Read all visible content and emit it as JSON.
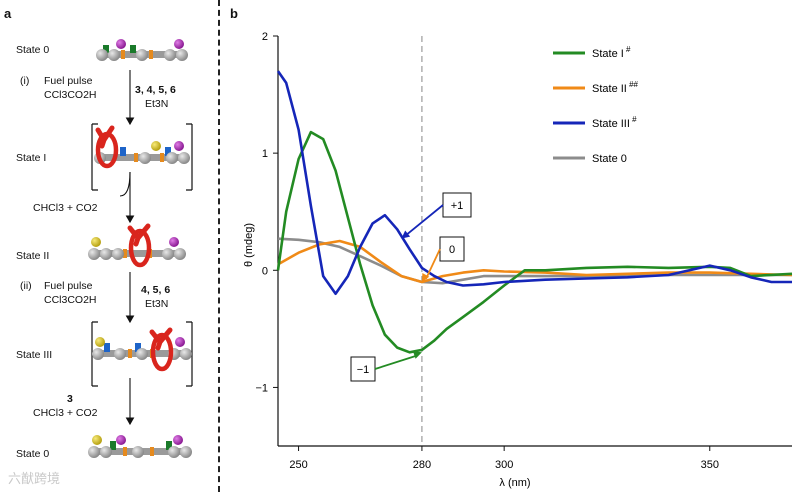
{
  "panel_a": {
    "label": "a",
    "states": [
      "State 0",
      "State I",
      "State II",
      "State III",
      "State 0"
    ],
    "step_i": {
      "marker": "(i)",
      "fuel_line1": "Fuel pulse",
      "fuel_line2": "CCl3CO2H",
      "reagents_bold": "3, 4, 5, 6",
      "base": "Et3N"
    },
    "byproduct_1": "CHCl3 + CO2",
    "step_ii": {
      "marker": "(ii)",
      "fuel_line1": "Fuel pulse",
      "fuel_line2": "CCl3CO2H",
      "reagents_bold": "4, 5, 6",
      "base": "Et3N"
    },
    "byproduct_2_bold": "3",
    "byproduct_2": "CHCl3 + CO2"
  },
  "chart_data": {
    "type": "line",
    "panel_label": "b",
    "xlabel": "λ (nm)",
    "ylabel": "θ (mdeg)",
    "xlim": [
      245,
      370
    ],
    "ylim": [
      -1.5,
      2
    ],
    "xticks": [
      250,
      280,
      300,
      350
    ],
    "yticks": [
      2,
      1,
      0,
      -1
    ],
    "reference_line_x": 280,
    "legend_position": "top-right",
    "series": [
      {
        "name": "State I",
        "superscript": "#",
        "color": "#238b23",
        "x": [
          245,
          247,
          250,
          253,
          256,
          259,
          262,
          265,
          268,
          271,
          274,
          277,
          280,
          283,
          286,
          290,
          295,
          300,
          305,
          310,
          320,
          330,
          340,
          350,
          355,
          360,
          370
        ],
        "y": [
          0.0,
          0.5,
          0.95,
          1.18,
          1.12,
          0.85,
          0.45,
          0.05,
          -0.3,
          -0.55,
          -0.66,
          -0.7,
          -0.68,
          -0.6,
          -0.5,
          -0.4,
          -0.27,
          -0.13,
          0.0,
          0.0,
          0.02,
          0.03,
          0.02,
          0.03,
          0.02,
          -0.05,
          -0.03
        ]
      },
      {
        "name": "State II",
        "superscript": "##",
        "color": "#f08a17",
        "x": [
          245,
          250,
          255,
          260,
          265,
          270,
          275,
          280,
          285,
          290,
          295,
          300,
          310,
          320,
          330,
          340,
          350,
          360,
          370
        ],
        "y": [
          0.05,
          0.15,
          0.22,
          0.25,
          0.2,
          0.07,
          -0.05,
          -0.1,
          -0.05,
          -0.02,
          0.0,
          -0.01,
          -0.02,
          -0.04,
          -0.03,
          -0.02,
          -0.02,
          -0.03,
          -0.04
        ]
      },
      {
        "name": "State III",
        "superscript": "#",
        "color": "#1526b8",
        "x": [
          245,
          247,
          250,
          253,
          256,
          259,
          262,
          265,
          268,
          271,
          274,
          277,
          280,
          283,
          286,
          290,
          295,
          300,
          310,
          320,
          330,
          340,
          350,
          355,
          360,
          365,
          370
        ],
        "y": [
          1.7,
          1.6,
          1.2,
          0.55,
          -0.05,
          -0.2,
          -0.05,
          0.2,
          0.4,
          0.47,
          0.35,
          0.18,
          0.02,
          -0.05,
          -0.1,
          -0.13,
          -0.12,
          -0.1,
          -0.08,
          -0.07,
          -0.06,
          -0.04,
          0.04,
          0.0,
          -0.06,
          -0.1,
          -0.1
        ]
      },
      {
        "name": "State 0",
        "superscript": "",
        "color": "#8c8c8c",
        "x": [
          245,
          250,
          255,
          260,
          265,
          270,
          275,
          280,
          285,
          290,
          295,
          300,
          310,
          320,
          330,
          340,
          350,
          360,
          370
        ],
        "y": [
          0.27,
          0.26,
          0.24,
          0.2,
          0.12,
          0.04,
          -0.05,
          -0.1,
          -0.11,
          -0.08,
          -0.05,
          -0.05,
          -0.05,
          -0.05,
          -0.05,
          -0.04,
          -0.04,
          -0.04,
          -0.04
        ]
      }
    ],
    "annotations": [
      {
        "label": "+1",
        "x": 275,
        "y": 0.27
      },
      {
        "label": "0",
        "x": 280,
        "y": -0.1
      },
      {
        "label": "−1",
        "x": 280,
        "y": -0.7
      }
    ]
  },
  "watermark": "六猷跨境"
}
